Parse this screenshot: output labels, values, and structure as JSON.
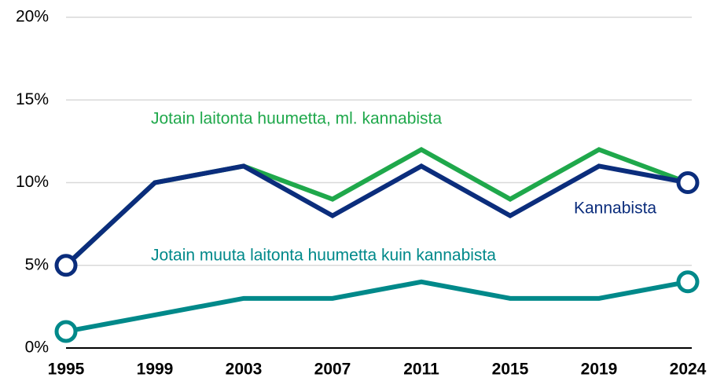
{
  "chart_data": {
    "type": "line",
    "categories": [
      "1995",
      "1999",
      "2003",
      "2007",
      "2011",
      "2015",
      "2019",
      "2024"
    ],
    "series": [
      {
        "name": "Jotain muuta laitonta huumetta kuin kannabista",
        "color": "#00898a",
        "values": [
          1,
          2,
          3,
          3,
          4,
          3,
          3,
          4
        ]
      },
      {
        "name": "Jotain laitonta huumetta, ml. kannabista",
        "color": "#1fa84b",
        "values": [
          5,
          10,
          11,
          9,
          12,
          9,
          12,
          10
        ]
      },
      {
        "name": "Kannabista",
        "color": "#0b2d7c",
        "values": [
          5,
          10,
          11,
          8,
          11,
          8,
          11,
          10
        ]
      }
    ],
    "ylim": [
      0,
      20
    ],
    "yticks": [
      {
        "value": 0,
        "label": "0%"
      },
      {
        "value": 5,
        "label": "5%"
      },
      {
        "value": 10,
        "label": "10%"
      },
      {
        "value": 15,
        "label": "15%"
      },
      {
        "value": 20,
        "label": "20%"
      }
    ],
    "grid": true
  }
}
